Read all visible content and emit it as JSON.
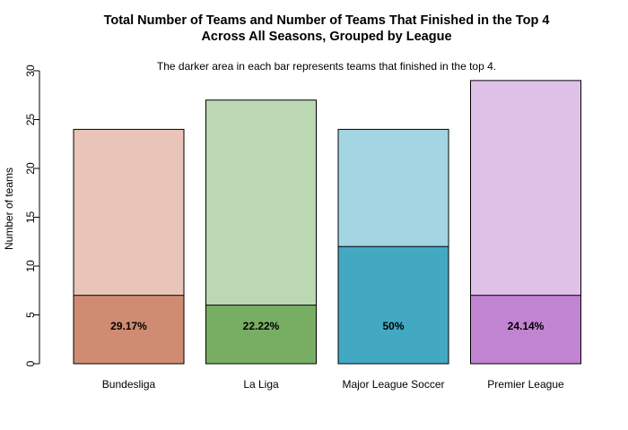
{
  "chart_data": {
    "type": "bar",
    "title": [
      "Total Number of Teams and Number of Teams That Finished in the Top 4",
      "Across All Seasons, Grouped by League"
    ],
    "subtitle": "The darker area in each bar represents teams that finished in the top 4.",
    "xlabel": "",
    "ylabel": "Number of teams",
    "ylim": [
      0,
      30
    ],
    "yticks": [
      0,
      5,
      10,
      15,
      20,
      25,
      30
    ],
    "categories": [
      "Bundesliga",
      "La Liga",
      "Major League Soccer",
      "Premier League"
    ],
    "series": [
      {
        "name": "Total teams",
        "values": [
          24,
          27,
          24,
          29
        ]
      },
      {
        "name": "Top 4 teams",
        "values": [
          7,
          6,
          12,
          7
        ]
      }
    ],
    "data_labels": [
      "29.17%",
      "22.22%",
      "50%",
      "24.14%"
    ],
    "colors": {
      "light": [
        "#e8c5b8",
        "#bcd8b2",
        "#a3d6e2",
        "#e0c1e8"
      ],
      "dark": [
        "#d08c73",
        "#78ae63",
        "#43a9c3",
        "#c184d1"
      ],
      "stroke": "#000000"
    },
    "grid": false,
    "legend": "none"
  }
}
